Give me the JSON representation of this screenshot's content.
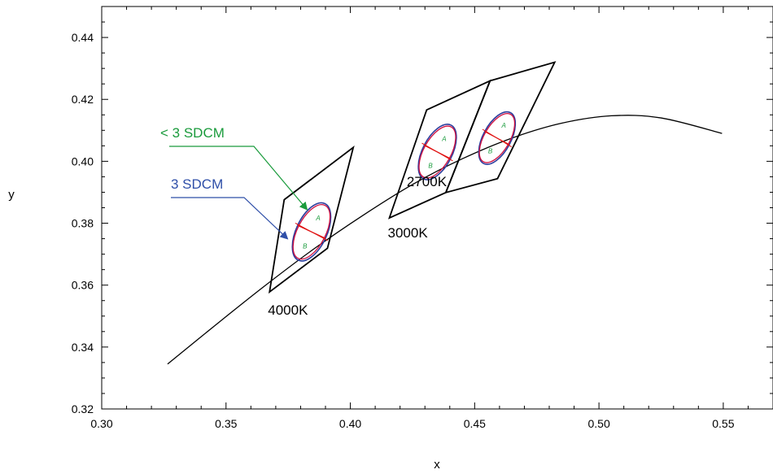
{
  "chart_data": {
    "type": "line",
    "xlabel": "x",
    "ylabel": "y",
    "xlim": [
      0.3,
      0.57
    ],
    "ylim": [
      0.32,
      0.45
    ],
    "x_ticks": [
      0.3,
      0.35,
      0.4,
      0.45,
      0.5,
      0.55
    ],
    "x_tick_labels": [
      "0.30",
      "0.35",
      "0.40",
      "0.45",
      "0.50",
      "0.55"
    ],
    "y_ticks": [
      0.32,
      0.34,
      0.36,
      0.38,
      0.4,
      0.42,
      0.44
    ],
    "y_tick_labels": [
      "0.32",
      "0.34",
      "0.36",
      "0.38",
      "0.40",
      "0.42",
      "0.44"
    ],
    "grid": false,
    "planckian_locus": {
      "x": [
        0.3265,
        0.345,
        0.365,
        0.385,
        0.405,
        0.425,
        0.445,
        0.465,
        0.485,
        0.505,
        0.525,
        0.5495
      ],
      "y": [
        0.3345,
        0.3466,
        0.3594,
        0.3715,
        0.3825,
        0.3925,
        0.4008,
        0.4075,
        0.4123,
        0.4147,
        0.414,
        0.409
      ]
    },
    "quadrangles": [
      {
        "label": "4000K",
        "corners": [
          [
            0.3734,
            0.3876
          ],
          [
            0.4012,
            0.4045
          ],
          [
            0.3908,
            0.3719
          ],
          [
            0.3675,
            0.3578
          ]
        ],
        "ellipse": {
          "center": [
            0.3844,
            0.3772
          ],
          "semi_major": 0.0112,
          "semi_minor": 0.0055,
          "angle_deg": 65
        }
      },
      {
        "label": "3000K",
        "corners": [
          [
            0.4307,
            0.4166
          ],
          [
            0.4562,
            0.426
          ],
          [
            0.4384,
            0.3899
          ],
          [
            0.4157,
            0.3817
          ]
        ],
        "ellipse": {
          "center": [
            0.435,
            0.403
          ],
          "semi_major": 0.0108,
          "semi_minor": 0.0053,
          "angle_deg": 63
        }
      },
      {
        "label": "2700K",
        "corners": [
          [
            0.4562,
            0.426
          ],
          [
            0.4822,
            0.432
          ],
          [
            0.4592,
            0.3944
          ],
          [
            0.4384,
            0.3899
          ]
        ],
        "ellipse": {
          "center": [
            0.459,
            0.4075
          ],
          "semi_major": 0.0103,
          "semi_minor": 0.005,
          "angle_deg": 62
        }
      }
    ],
    "half_labels": [
      "A",
      "B"
    ],
    "annotations": [
      {
        "text": "< 3 SDCM",
        "color": "#1a9b3c"
      },
      {
        "text": "3 SDCM",
        "color": "#2f4fa8"
      }
    ],
    "colors": {
      "locus": "#000000",
      "quadrangle": "#000000",
      "ellipse_outer": "#2c3e9e",
      "ellipse_inner": "#d01040",
      "divider": "#e01010",
      "half_label": "#1a9b3c"
    }
  }
}
